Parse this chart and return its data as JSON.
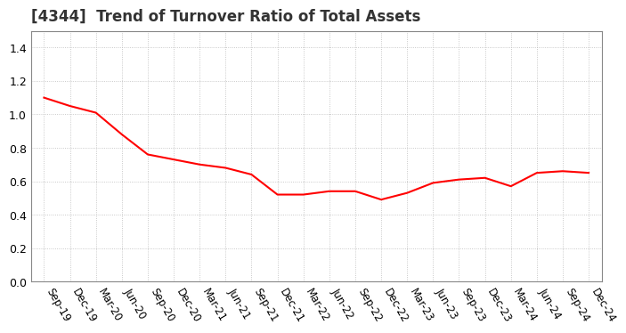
{
  "title": "[4344]  Trend of Turnover Ratio of Total Assets",
  "title_fontsize": 12,
  "title_color": "#333333",
  "line_color": "#FF0000",
  "line_width": 1.5,
  "background_color": "#FFFFFF",
  "grid_color": "#BBBBBB",
  "ylim": [
    0.0,
    1.5
  ],
  "yticks": [
    0.0,
    0.2,
    0.4,
    0.6,
    0.8,
    1.0,
    1.2,
    1.4
  ],
  "x_labels": [
    "Sep-19",
    "Dec-19",
    "Mar-20",
    "Jun-20",
    "Sep-20",
    "Dec-20",
    "Mar-21",
    "Jun-21",
    "Sep-21",
    "Dec-21",
    "Mar-22",
    "Jun-22",
    "Sep-22",
    "Dec-22",
    "Mar-23",
    "Jun-23",
    "Sep-23",
    "Dec-23",
    "Mar-24",
    "Jun-24",
    "Sep-24",
    "Dec-24"
  ],
  "values": [
    1.1,
    1.05,
    1.01,
    0.88,
    0.76,
    0.73,
    0.7,
    0.68,
    0.64,
    0.52,
    0.52,
    0.54,
    0.54,
    0.49,
    0.53,
    0.59,
    0.61,
    0.62,
    0.57,
    0.65,
    0.66,
    0.65
  ],
  "tick_label_fontsize": 8.5,
  "ytick_label_fontsize": 9
}
